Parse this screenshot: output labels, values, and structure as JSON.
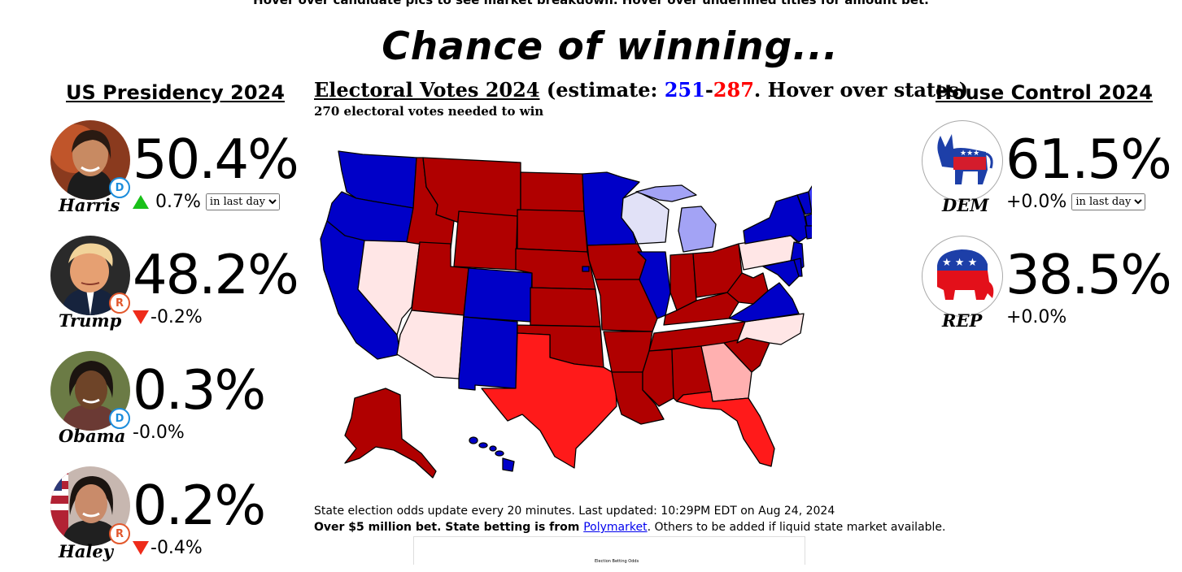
{
  "header": {
    "note": "Hover over candidate pics to see market breakdown. Hover over underlined titles for amount bet.",
    "title": "Chance of winning..."
  },
  "presidency": {
    "title": "US Presidency 2024",
    "period_option": "in last day",
    "candidates": [
      {
        "name": "Harris",
        "party_badge": "D",
        "percent": "50.4%",
        "change": "0.7%",
        "direction": "up"
      },
      {
        "name": "Trump",
        "party_badge": "R",
        "percent": "48.2%",
        "change": "-0.2%",
        "direction": "down"
      },
      {
        "name": "Obama",
        "party_badge": "D",
        "percent": "0.3%",
        "change": "-0.0%",
        "direction": "none"
      },
      {
        "name": "Haley",
        "party_badge": "R",
        "percent": "0.2%",
        "change": "-0.4%",
        "direction": "down"
      }
    ]
  },
  "electoral": {
    "title": "Electoral Votes 2024",
    "estimate_prefix": " (estimate: ",
    "dem_votes": "251",
    "dash": "-",
    "rep_votes": "287",
    "estimate_suffix": ". Hover over states)",
    "subtitle": "270 electoral votes needed to win"
  },
  "house": {
    "title": "House Control 2024",
    "period_option": "in last day",
    "parties": [
      {
        "name": "DEM",
        "percent": "61.5%",
        "change": "+0.0%"
      },
      {
        "name": "REP",
        "percent": "38.5%",
        "change": "+0.0%"
      }
    ]
  },
  "footer": {
    "update_text": "State election odds update every 20 minutes. Last updated: 10:29PM EDT on Aug 24, 2024",
    "bet_bold": "Over $5 million bet. State betting is from ",
    "polymarket_link": "Polymarket",
    "bet_rest": ". Others to be added if liquid state market available.",
    "thumbnail_caption": "Election Betting Odds"
  },
  "colors": {
    "dem": "#0000c8",
    "rep": "#b00000",
    "likely_rep": "#ff1a1a",
    "lean_rep": "#ffb0b0",
    "tossup_rep": "#ffe6e6",
    "likely_dem": "#3d3df5",
    "lean_dem": "#a3a3f5",
    "tossup_dem": "#e1e1f7",
    "up_arrow": "#19c019",
    "down_arrow": "#ee2b1a"
  },
  "icons": [
    "harris-photo",
    "trump-photo",
    "obama-photo",
    "haley-photo",
    "democrat-donkey-icon",
    "republican-elephant-icon",
    "triangle-up-icon",
    "triangle-down-icon"
  ]
}
